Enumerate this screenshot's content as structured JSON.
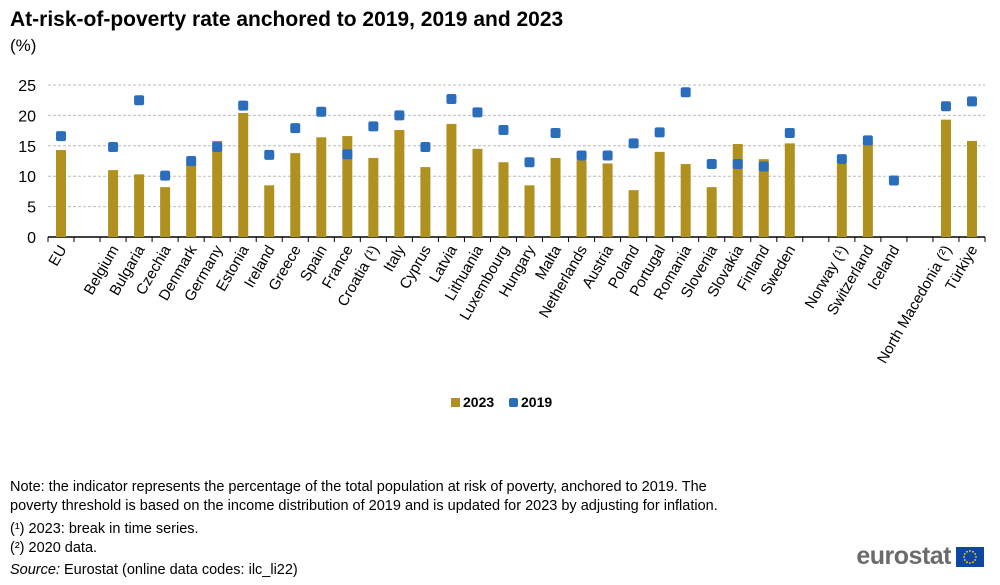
{
  "chart_data": {
    "type": "bar",
    "title": "At-risk-of-poverty rate anchored to 2019, 2019 and 2023",
    "unit": "(%)",
    "ylim": [
      0,
      25
    ],
    "yticks": [
      0,
      5,
      10,
      15,
      20,
      25
    ],
    "grid": true,
    "legend_placement": "bottom",
    "categories": [
      "EU",
      "",
      "Belgium",
      "Bulgaria",
      "Czechia",
      "Denmark",
      "Germany",
      "Estonia",
      "Ireland",
      "Greece",
      "Spain",
      "France",
      "Croatia (¹)",
      "Italy",
      "Cyprus",
      "Latvia",
      "Lithuania",
      "Luxembourg",
      "Hungary",
      "Malta",
      "Netherlands",
      "Austria",
      "Poland",
      "Portugal",
      "Romania",
      "Slovenia",
      "Slovakia",
      "Finland",
      "Sweden",
      "",
      "Norway (¹)",
      "Switzerland",
      "Iceland",
      "",
      "North Macedonia (²)",
      "Türkiye"
    ],
    "series": [
      {
        "name": "2023",
        "type": "bar",
        "color": "#b09120",
        "values": [
          14.3,
          null,
          11.0,
          10.3,
          8.2,
          12.0,
          15.8,
          20.4,
          8.5,
          13.8,
          16.4,
          16.6,
          13.0,
          17.6,
          11.5,
          18.6,
          14.5,
          12.3,
          8.5,
          13.0,
          12.6,
          12.1,
          7.7,
          14.0,
          12.0,
          8.2,
          15.3,
          12.8,
          15.4,
          null,
          12.0,
          15.6,
          null,
          null,
          19.3,
          15.8
        ]
      },
      {
        "name": "2019",
        "type": "marker",
        "color": "#2a6ebb",
        "values": [
          16.6,
          null,
          14.8,
          22.5,
          10.1,
          12.5,
          14.8,
          21.6,
          13.5,
          17.9,
          20.6,
          13.6,
          18.2,
          20.0,
          14.8,
          22.7,
          20.5,
          17.6,
          12.3,
          17.1,
          13.4,
          13.4,
          15.4,
          17.2,
          23.8,
          12.0,
          12.0,
          11.6,
          17.1,
          null,
          12.8,
          15.9,
          9.3,
          null,
          21.5,
          22.3
        ]
      }
    ]
  },
  "notes": {
    "line1": "Note: the indicator represents the percentage of the total population at risk of poverty, anchored to 2019. The",
    "line2": "poverty threshold is based on the income distribution of 2019 and is updated for 2023 by adjusting for inflation.",
    "fn1": "(¹) 2023: break in time series.",
    "fn2": "(²) 2020 data.",
    "source_label": "Source:",
    "source_text": " Eurostat (online data codes: ilc_li22)"
  },
  "logo": {
    "text": "eurostat"
  }
}
